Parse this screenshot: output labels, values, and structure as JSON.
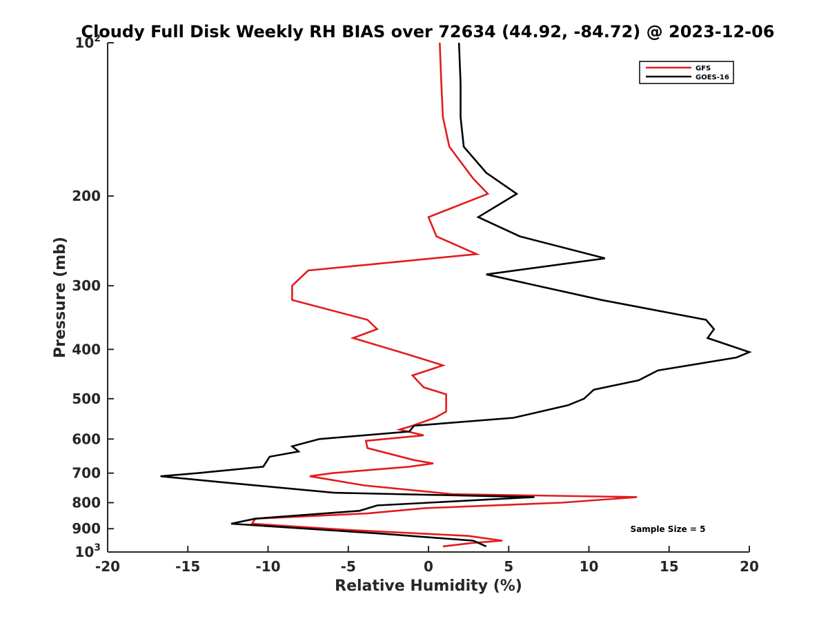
{
  "chart_data": {
    "type": "line",
    "title": "Cloudy Full Disk Weekly RH BIAS over 72634 (44.92, -84.72) @ 2023-12-06",
    "xlabel": "Relative Humidity (%)",
    "ylabel": "Pressure (mb)",
    "xlim": [
      -20,
      20
    ],
    "ylim": [
      100,
      1000
    ],
    "yscale": "log",
    "y_reversed": true,
    "x_ticks": [
      "-20",
      "-15",
      "-10",
      "-5",
      "0",
      "5",
      "10",
      "15",
      "20"
    ],
    "y_ticks": [
      {
        "value": 100,
        "base": "10",
        "exp": "2"
      },
      {
        "value": 200,
        "label": "200"
      },
      {
        "value": 300,
        "label": "300"
      },
      {
        "value": 400,
        "label": "400"
      },
      {
        "value": 500,
        "label": "500"
      },
      {
        "value": 600,
        "label": "600"
      },
      {
        "value": 700,
        "label": "700"
      },
      {
        "value": 800,
        "label": "800"
      },
      {
        "value": 900,
        "label": "900"
      },
      {
        "value": 1000,
        "base": "10",
        "exp": "3"
      }
    ],
    "grid": false,
    "legend_position": "top-right",
    "annotation": "Sample Size = 5",
    "series": [
      {
        "name": "GFS",
        "color": "#e41a1c",
        "points": [
          {
            "x": 0.7,
            "y": 100
          },
          {
            "x": 0.8,
            "y": 120
          },
          {
            "x": 0.9,
            "y": 140
          },
          {
            "x": 1.3,
            "y": 160
          },
          {
            "x": 2.8,
            "y": 185
          },
          {
            "x": 3.7,
            "y": 198
          },
          {
            "x": 0.0,
            "y": 220
          },
          {
            "x": 0.5,
            "y": 240
          },
          {
            "x": 3.0,
            "y": 260
          },
          {
            "x": -7.5,
            "y": 280
          },
          {
            "x": -8.5,
            "y": 300
          },
          {
            "x": -8.5,
            "y": 320
          },
          {
            "x": -3.8,
            "y": 350
          },
          {
            "x": -3.2,
            "y": 365
          },
          {
            "x": -4.7,
            "y": 380
          },
          {
            "x": -1.2,
            "y": 410
          },
          {
            "x": 0.9,
            "y": 430
          },
          {
            "x": -1.0,
            "y": 450
          },
          {
            "x": -0.3,
            "y": 475
          },
          {
            "x": 1.1,
            "y": 490
          },
          {
            "x": 1.1,
            "y": 510
          },
          {
            "x": 1.1,
            "y": 530
          },
          {
            "x": 0.4,
            "y": 545
          },
          {
            "x": -1.0,
            "y": 565
          },
          {
            "x": -1.8,
            "y": 575
          },
          {
            "x": -0.3,
            "y": 590
          },
          {
            "x": -3.9,
            "y": 605
          },
          {
            "x": -3.8,
            "y": 625
          },
          {
            "x": -0.9,
            "y": 660
          },
          {
            "x": 0.3,
            "y": 670
          },
          {
            "x": -1.2,
            "y": 680
          },
          {
            "x": -6.0,
            "y": 700
          },
          {
            "x": -7.4,
            "y": 710
          },
          {
            "x": -4.0,
            "y": 740
          },
          {
            "x": 1.5,
            "y": 770
          },
          {
            "x": 13.0,
            "y": 780
          },
          {
            "x": 8.3,
            "y": 800
          },
          {
            "x": -0.2,
            "y": 820
          },
          {
            "x": -3.8,
            "y": 840
          },
          {
            "x": -10.8,
            "y": 860
          },
          {
            "x": -11.0,
            "y": 880
          },
          {
            "x": -5.0,
            "y": 905
          },
          {
            "x": 2.5,
            "y": 930
          },
          {
            "x": 4.6,
            "y": 950
          },
          {
            "x": 2.7,
            "y": 960
          },
          {
            "x": 0.9,
            "y": 975
          }
        ]
      },
      {
        "name": "GOES-16",
        "color": "#000000",
        "points": [
          {
            "x": 1.9,
            "y": 100
          },
          {
            "x": 2.0,
            "y": 120
          },
          {
            "x": 2.0,
            "y": 140
          },
          {
            "x": 2.2,
            "y": 160
          },
          {
            "x": 3.6,
            "y": 180
          },
          {
            "x": 5.5,
            "y": 198
          },
          {
            "x": 3.1,
            "y": 220
          },
          {
            "x": 5.7,
            "y": 240
          },
          {
            "x": 11.0,
            "y": 265
          },
          {
            "x": 3.6,
            "y": 285
          },
          {
            "x": 10.8,
            "y": 320
          },
          {
            "x": 17.3,
            "y": 350
          },
          {
            "x": 17.8,
            "y": 365
          },
          {
            "x": 17.4,
            "y": 380
          },
          {
            "x": 20.0,
            "y": 405
          },
          {
            "x": 19.2,
            "y": 415
          },
          {
            "x": 14.3,
            "y": 440
          },
          {
            "x": 13.1,
            "y": 460
          },
          {
            "x": 10.3,
            "y": 480
          },
          {
            "x": 9.7,
            "y": 500
          },
          {
            "x": 8.7,
            "y": 515
          },
          {
            "x": 5.3,
            "y": 545
          },
          {
            "x": -0.9,
            "y": 565
          },
          {
            "x": -1.2,
            "y": 580
          },
          {
            "x": -6.8,
            "y": 600
          },
          {
            "x": -8.5,
            "y": 620
          },
          {
            "x": -8.1,
            "y": 635
          },
          {
            "x": -9.9,
            "y": 650
          },
          {
            "x": -10.3,
            "y": 680
          },
          {
            "x": -14.4,
            "y": 700
          },
          {
            "x": -16.7,
            "y": 710
          },
          {
            "x": -12.8,
            "y": 730
          },
          {
            "x": -5.9,
            "y": 765
          },
          {
            "x": 6.6,
            "y": 780
          },
          {
            "x": -3.2,
            "y": 810
          },
          {
            "x": -4.3,
            "y": 830
          },
          {
            "x": -10.8,
            "y": 860
          },
          {
            "x": -12.3,
            "y": 880
          },
          {
            "x": -3.0,
            "y": 920
          },
          {
            "x": 2.8,
            "y": 950
          },
          {
            "x": 3.6,
            "y": 975
          }
        ]
      }
    ]
  }
}
